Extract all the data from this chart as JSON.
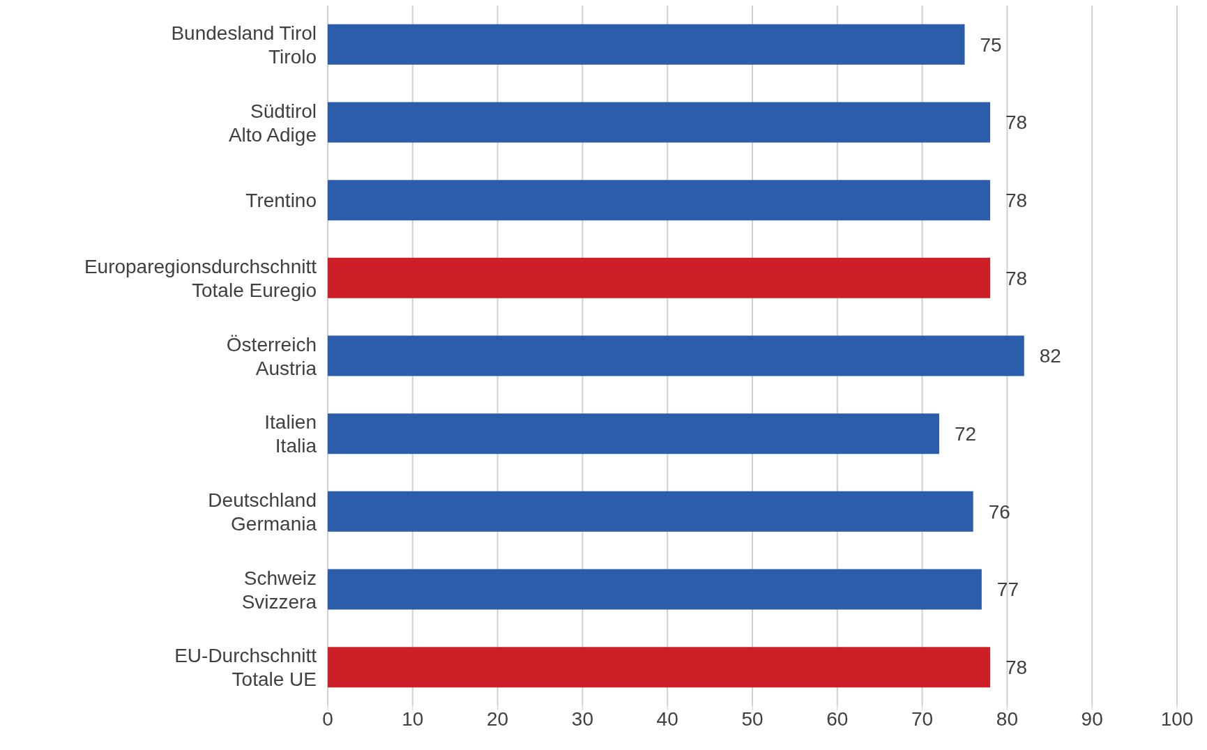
{
  "chart_data": {
    "type": "bar",
    "orientation": "horizontal",
    "categories": [
      "Bundesland Tirol\nTirolo",
      "Südtirol\nAlto Adige",
      "Trentino",
      "Europaregionsdurchschnitt\nTotale Euregio",
      "Österreich\nAustria",
      "Italien\nItalia",
      "Deutschland\nGermania",
      "Schweiz\nSvizzera",
      "EU-Durchschnitt\nTotale UE"
    ],
    "values": [
      75,
      78,
      78,
      78,
      82,
      72,
      76,
      77,
      78
    ],
    "colors": [
      "#2b5dab",
      "#2b5dab",
      "#2b5dab",
      "#cc1f27",
      "#2b5dab",
      "#2b5dab",
      "#2b5dab",
      "#2b5dab",
      "#cc1f27"
    ],
    "xlim": [
      0,
      100
    ],
    "xticks": [
      0,
      10,
      20,
      30,
      40,
      50,
      60,
      70,
      80,
      90,
      100
    ],
    "grid": "x",
    "data_labels": true
  }
}
